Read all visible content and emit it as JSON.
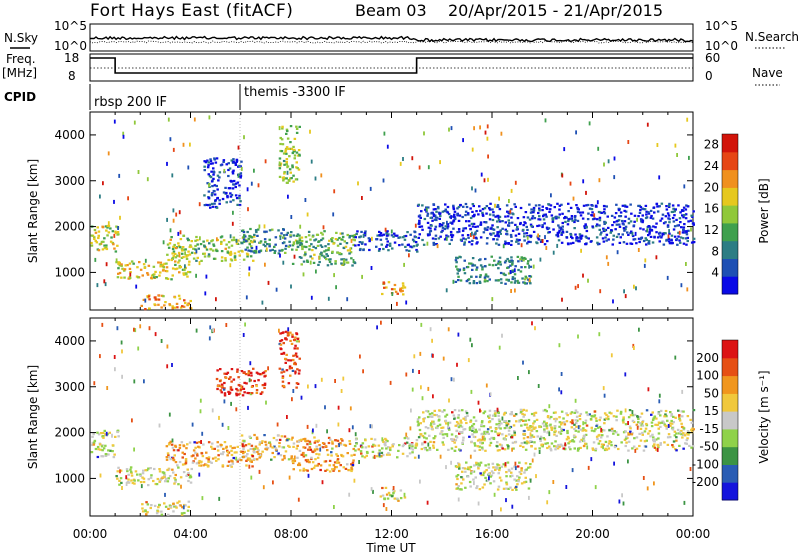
{
  "header": {
    "station": "Fort Hays East (fitACF)",
    "beam": "Beam 03",
    "date_range": "20/Apr/2015 - 21/Apr/2015"
  },
  "top_panel": {
    "left_labels": {
      "nsky": "N.Sky",
      "freq_line1": "Freq.",
      "freq_line2": "[MHz]",
      "cpid": "CPID"
    },
    "right_labels": {
      "nsearch": "N.Search",
      "nave": "Nave"
    },
    "noise_ticks": {
      "top": "10^5",
      "bottom": "10^0"
    },
    "freq_ticks": {
      "top": "18",
      "bottom": "8"
    },
    "nave_ticks": {
      "top": "60",
      "bottom": "0"
    },
    "noise_right_ticks": {
      "top": "10^5",
      "bottom": "10^0"
    }
  },
  "cpid_labels": [
    {
      "text": "rbsp 200 IF",
      "start_hour": 0
    },
    {
      "text": "themis -3300 IF",
      "start_hour": 6
    }
  ],
  "x_axis": {
    "label": "Time UT",
    "ticks": [
      "00:00",
      "04:00",
      "08:00",
      "12:00",
      "16:00",
      "20:00",
      "00:00"
    ],
    "range_hours": [
      0,
      24
    ]
  },
  "chart_data": [
    {
      "type": "heatmap",
      "name": "power",
      "ylabel": "Slant Range [km]",
      "ylim": [
        180,
        4500
      ],
      "yticks": [
        "1000",
        "2000",
        "3000",
        "4000"
      ],
      "colorbar": {
        "title": "Power [dB]",
        "range": [
          0,
          30
        ],
        "ticks": [
          "4",
          "8",
          "12",
          "16",
          "20",
          "24",
          "28"
        ],
        "colors": [
          "#0a0ae6",
          "#1e50b4",
          "#2c7d84",
          "#3fa04e",
          "#90c83a",
          "#e6c81e",
          "#f0901e",
          "#e64614",
          "#d2140a"
        ]
      },
      "regions": [
        {
          "t": [
            0,
            1.1
          ],
          "r": [
            1450,
            2050
          ],
          "level": 0.55
        },
        {
          "t": [
            1,
            4
          ],
          "r": [
            850,
            1250
          ],
          "level": 0.6
        },
        {
          "t": [
            3,
            6.5
          ],
          "r": [
            1250,
            1800
          ],
          "level": 0.5
        },
        {
          "t": [
            6,
            8
          ],
          "r": [
            1400,
            1950
          ],
          "level": 0.3
        },
        {
          "t": [
            8,
            10.5
          ],
          "r": [
            1150,
            1900
          ],
          "level": 0.4
        },
        {
          "t": [
            10.5,
            13
          ],
          "r": [
            1450,
            1900
          ],
          "level": 0.15
        },
        {
          "t": [
            13,
            24
          ],
          "r": [
            1600,
            2500
          ],
          "level": 0.1
        },
        {
          "t": [
            14.5,
            17.5
          ],
          "r": [
            750,
            1350
          ],
          "level": 0.3
        },
        {
          "t": [
            2,
            4
          ],
          "r": [
            200,
            500
          ],
          "level": 0.7
        },
        {
          "t": [
            7.5,
            8.3
          ],
          "r": [
            2950,
            4200
          ],
          "level": 0.5
        },
        {
          "t": [
            11.5,
            12.5
          ],
          "r": [
            500,
            800
          ],
          "level": 0.7
        },
        {
          "t": [
            4.5,
            6
          ],
          "r": [
            2400,
            3500
          ],
          "level": 0.1
        }
      ]
    },
    {
      "type": "heatmap",
      "name": "velocity",
      "ylabel": "Slant Range [km]",
      "ylim": [
        180,
        4500
      ],
      "yticks": [
        "1000",
        "2000",
        "3000",
        "4000"
      ],
      "colorbar": {
        "title": "Velocity [m s⁻¹]",
        "range": [
          -250,
          250
        ],
        "ticks": [
          "200",
          "100",
          "50",
          "15",
          "-15",
          "-50",
          "-100",
          "-200"
        ],
        "colors": [
          "#1414dc",
          "#2a5db4",
          "#3c9444",
          "#8fd24a",
          "#c8c8c8",
          "#f0c83c",
          "#f0961e",
          "#e65014",
          "#dc1414"
        ]
      },
      "regions": [
        {
          "t": [
            0,
            1.1
          ],
          "r": [
            1450,
            2050
          ],
          "level": 0.5
        },
        {
          "t": [
            1,
            4
          ],
          "r": [
            850,
            1250
          ],
          "level": 0.5
        },
        {
          "t": [
            3,
            6.5
          ],
          "r": [
            1250,
            1800
          ],
          "level": 0.65
        },
        {
          "t": [
            6,
            8
          ],
          "r": [
            1400,
            1950
          ],
          "level": 0.6
        },
        {
          "t": [
            8,
            10.5
          ],
          "r": [
            1150,
            1900
          ],
          "level": 0.7
        },
        {
          "t": [
            10.5,
            13
          ],
          "r": [
            1450,
            1900
          ],
          "level": 0.5
        },
        {
          "t": [
            13,
            24
          ],
          "r": [
            1600,
            2500
          ],
          "level": 0.5
        },
        {
          "t": [
            14.5,
            17.5
          ],
          "r": [
            750,
            1350
          ],
          "level": 0.5
        },
        {
          "t": [
            2,
            4
          ],
          "r": [
            200,
            500
          ],
          "level": 0.55
        },
        {
          "t": [
            5,
            7
          ],
          "r": [
            2800,
            3400
          ],
          "level": 0.92
        },
        {
          "t": [
            7.5,
            8.3
          ],
          "r": [
            2950,
            4200
          ],
          "level": 0.9
        },
        {
          "t": [
            11.5,
            12.5
          ],
          "r": [
            500,
            800
          ],
          "level": 0.5
        }
      ]
    }
  ]
}
